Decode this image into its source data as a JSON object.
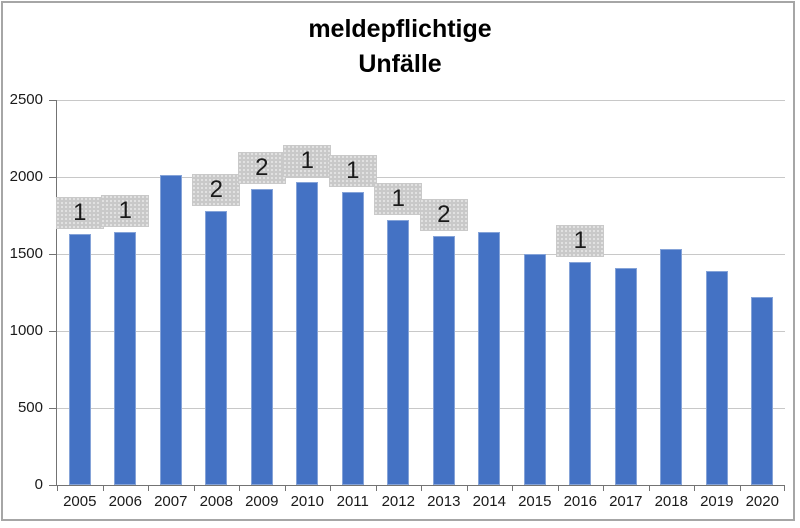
{
  "chart": {
    "title_line1": "meldepflichtige",
    "title_line2": "Unfälle"
  },
  "chart_data": {
    "type": "bar",
    "title": "meldepflichtige Unfälle",
    "xlabel": "",
    "ylabel": "",
    "categories": [
      "2005",
      "2006",
      "2007",
      "2008",
      "2009",
      "2010",
      "2011",
      "2012",
      "2013",
      "2014",
      "2015",
      "2016",
      "2017",
      "2018",
      "2019",
      "2020"
    ],
    "values": [
      1630,
      1640,
      2010,
      1780,
      1920,
      1970,
      1900,
      1720,
      1620,
      1640,
      1500,
      1450,
      1410,
      1530,
      1390,
      1220
    ],
    "bar_labels": [
      "1",
      "1",
      "",
      "2",
      "2",
      "1",
      "1",
      "1",
      "2",
      "",
      "",
      "1",
      "",
      "",
      "",
      ""
    ],
    "ylim": [
      0,
      2500
    ],
    "yticks": [
      0,
      500,
      1000,
      1500,
      2000,
      2500
    ],
    "grid": true,
    "legend": false,
    "colors": {
      "bar": "#4472c4",
      "gridline": "#c8c8c8",
      "axis": "#737373",
      "label_box": "#c9c9c9",
      "frame": "#a6a6a6",
      "text": "#000000"
    }
  }
}
